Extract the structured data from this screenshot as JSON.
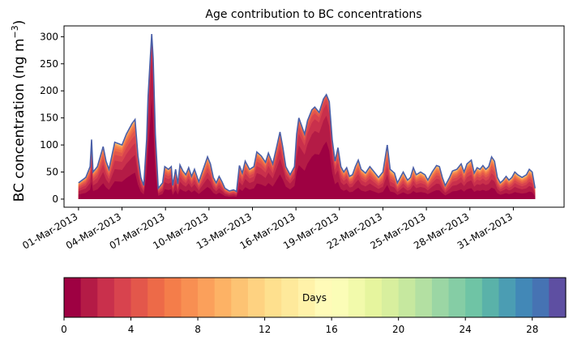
{
  "chart_data": {
    "type": "area",
    "title": "Age contribution to BC concentrations",
    "ylabel": "BC concentration (ng m",
    "ylabel_sup": "−3",
    "ylabel_close": ")",
    "xlabel": "",
    "ylim": [
      -15,
      320
    ],
    "xlim_days": [
      -1,
      33.5
    ],
    "data_start_day": 0,
    "data_end_day": 31.5,
    "yticks": [
      0,
      50,
      100,
      150,
      200,
      250,
      300
    ],
    "xticks": [
      {
        "day": 0,
        "label": "01-Mar-2013"
      },
      {
        "day": 3,
        "label": "04-Mar-2013"
      },
      {
        "day": 6,
        "label": "07-Mar-2013"
      },
      {
        "day": 9,
        "label": "10-Mar-2013"
      },
      {
        "day": 12,
        "label": "13-Mar-2013"
      },
      {
        "day": 15,
        "label": "16-Mar-2013"
      },
      {
        "day": 18,
        "label": "19-Mar-2013"
      },
      {
        "day": 21,
        "label": "22-Mar-2013"
      },
      {
        "day": 24,
        "label": "25-Mar-2013"
      },
      {
        "day": 27,
        "label": "28-Mar-2013"
      },
      {
        "day": 30,
        "label": "31-Mar-2013"
      }
    ],
    "total_series": [
      {
        "day": 0.0,
        "value": 30
      },
      {
        "day": 0.5,
        "value": 40
      },
      {
        "day": 0.8,
        "value": 60
      },
      {
        "day": 0.9,
        "value": 110
      },
      {
        "day": 1.0,
        "value": 50
      },
      {
        "day": 1.3,
        "value": 60
      },
      {
        "day": 1.7,
        "value": 97
      },
      {
        "day": 1.9,
        "value": 70
      },
      {
        "day": 2.1,
        "value": 55
      },
      {
        "day": 2.5,
        "value": 105
      },
      {
        "day": 3.0,
        "value": 100
      },
      {
        "day": 3.3,
        "value": 120
      },
      {
        "day": 3.7,
        "value": 140
      },
      {
        "day": 3.9,
        "value": 147
      },
      {
        "day": 4.1,
        "value": 80
      },
      {
        "day": 4.3,
        "value": 40
      },
      {
        "day": 4.5,
        "value": 25
      },
      {
        "day": 4.7,
        "value": 110
      },
      {
        "day": 4.8,
        "value": 190
      },
      {
        "day": 4.95,
        "value": 260
      },
      {
        "day": 5.05,
        "value": 305
      },
      {
        "day": 5.15,
        "value": 260
      },
      {
        "day": 5.3,
        "value": 120
      },
      {
        "day": 5.5,
        "value": 20
      },
      {
        "day": 5.8,
        "value": 30
      },
      {
        "day": 5.95,
        "value": 60
      },
      {
        "day": 6.2,
        "value": 55
      },
      {
        "day": 6.4,
        "value": 60
      },
      {
        "day": 6.5,
        "value": 25
      },
      {
        "day": 6.7,
        "value": 55
      },
      {
        "day": 6.85,
        "value": 28
      },
      {
        "day": 7.0,
        "value": 63
      },
      {
        "day": 7.2,
        "value": 52
      },
      {
        "day": 7.4,
        "value": 45
      },
      {
        "day": 7.6,
        "value": 58
      },
      {
        "day": 7.8,
        "value": 42
      },
      {
        "day": 8.0,
        "value": 55
      },
      {
        "day": 8.3,
        "value": 32
      },
      {
        "day": 8.6,
        "value": 55
      },
      {
        "day": 8.9,
        "value": 78
      },
      {
        "day": 9.1,
        "value": 65
      },
      {
        "day": 9.3,
        "value": 40
      },
      {
        "day": 9.5,
        "value": 30
      },
      {
        "day": 9.7,
        "value": 42
      },
      {
        "day": 9.9,
        "value": 32
      },
      {
        "day": 10.1,
        "value": 20
      },
      {
        "day": 10.4,
        "value": 15
      },
      {
        "day": 10.7,
        "value": 17
      },
      {
        "day": 10.9,
        "value": 14
      },
      {
        "day": 11.1,
        "value": 62
      },
      {
        "day": 11.3,
        "value": 48
      },
      {
        "day": 11.5,
        "value": 70
      },
      {
        "day": 11.8,
        "value": 55
      },
      {
        "day": 12.1,
        "value": 60
      },
      {
        "day": 12.3,
        "value": 87
      },
      {
        "day": 12.6,
        "value": 80
      },
      {
        "day": 12.9,
        "value": 68
      },
      {
        "day": 13.1,
        "value": 85
      },
      {
        "day": 13.4,
        "value": 65
      },
      {
        "day": 13.7,
        "value": 100
      },
      {
        "day": 13.9,
        "value": 124
      },
      {
        "day": 14.1,
        "value": 95
      },
      {
        "day": 14.3,
        "value": 60
      },
      {
        "day": 14.6,
        "value": 45
      },
      {
        "day": 14.9,
        "value": 60
      },
      {
        "day": 15.05,
        "value": 120
      },
      {
        "day": 15.2,
        "value": 150
      },
      {
        "day": 15.4,
        "value": 135
      },
      {
        "day": 15.6,
        "value": 120
      },
      {
        "day": 15.8,
        "value": 145
      },
      {
        "day": 16.1,
        "value": 165
      },
      {
        "day": 16.3,
        "value": 170
      },
      {
        "day": 16.6,
        "value": 160
      },
      {
        "day": 16.9,
        "value": 185
      },
      {
        "day": 17.1,
        "value": 193
      },
      {
        "day": 17.3,
        "value": 180
      },
      {
        "day": 17.5,
        "value": 110
      },
      {
        "day": 17.7,
        "value": 70
      },
      {
        "day": 17.9,
        "value": 95
      },
      {
        "day": 18.1,
        "value": 60
      },
      {
        "day": 18.3,
        "value": 50
      },
      {
        "day": 18.5,
        "value": 58
      },
      {
        "day": 18.7,
        "value": 42
      },
      {
        "day": 18.9,
        "value": 45
      },
      {
        "day": 19.1,
        "value": 60
      },
      {
        "day": 19.3,
        "value": 72
      },
      {
        "day": 19.5,
        "value": 55
      },
      {
        "day": 19.8,
        "value": 48
      },
      {
        "day": 20.1,
        "value": 60
      },
      {
        "day": 20.4,
        "value": 50
      },
      {
        "day": 20.7,
        "value": 40
      },
      {
        "day": 21.0,
        "value": 50
      },
      {
        "day": 21.3,
        "value": 100
      },
      {
        "day": 21.5,
        "value": 55
      },
      {
        "day": 21.8,
        "value": 48
      },
      {
        "day": 22.0,
        "value": 30
      },
      {
        "day": 22.4,
        "value": 50
      },
      {
        "day": 22.7,
        "value": 35
      },
      {
        "day": 22.9,
        "value": 40
      },
      {
        "day": 23.1,
        "value": 58
      },
      {
        "day": 23.3,
        "value": 45
      },
      {
        "day": 23.6,
        "value": 50
      },
      {
        "day": 23.9,
        "value": 45
      },
      {
        "day": 24.1,
        "value": 35
      },
      {
        "day": 24.4,
        "value": 50
      },
      {
        "day": 24.7,
        "value": 62
      },
      {
        "day": 24.9,
        "value": 60
      },
      {
        "day": 25.1,
        "value": 40
      },
      {
        "day": 25.3,
        "value": 25
      },
      {
        "day": 25.6,
        "value": 40
      },
      {
        "day": 25.8,
        "value": 52
      },
      {
        "day": 26.1,
        "value": 55
      },
      {
        "day": 26.4,
        "value": 65
      },
      {
        "day": 26.6,
        "value": 50
      },
      {
        "day": 26.8,
        "value": 65
      },
      {
        "day": 27.1,
        "value": 72
      },
      {
        "day": 27.3,
        "value": 48
      },
      {
        "day": 27.5,
        "value": 58
      },
      {
        "day": 27.7,
        "value": 55
      },
      {
        "day": 27.9,
        "value": 62
      },
      {
        "day": 28.1,
        "value": 55
      },
      {
        "day": 28.3,
        "value": 60
      },
      {
        "day": 28.5,
        "value": 78
      },
      {
        "day": 28.7,
        "value": 70
      },
      {
        "day": 28.9,
        "value": 40
      },
      {
        "day": 29.1,
        "value": 30
      },
      {
        "day": 29.3,
        "value": 35
      },
      {
        "day": 29.5,
        "value": 42
      },
      {
        "day": 29.7,
        "value": 35
      },
      {
        "day": 29.9,
        "value": 40
      },
      {
        "day": 30.1,
        "value": 50
      },
      {
        "day": 30.3,
        "value": 45
      },
      {
        "day": 30.6,
        "value": 40
      },
      {
        "day": 30.9,
        "value": 45
      },
      {
        "day": 31.1,
        "value": 55
      },
      {
        "day": 31.3,
        "value": 50
      },
      {
        "day": 31.5,
        "value": 20
      }
    ],
    "young_fraction_points": [
      {
        "day": 0,
        "value": 0.3
      },
      {
        "day": 4.5,
        "value": 0.4
      },
      {
        "day": 5.05,
        "value": 0.85
      },
      {
        "day": 5.5,
        "value": 0.35
      },
      {
        "day": 10,
        "value": 0.3
      },
      {
        "day": 14,
        "value": 0.45
      },
      {
        "day": 15.5,
        "value": 0.55
      },
      {
        "day": 17.1,
        "value": 0.75
      },
      {
        "day": 18,
        "value": 0.35
      },
      {
        "day": 22,
        "value": 0.25
      },
      {
        "day": 27,
        "value": 0.3
      },
      {
        "day": 31.5,
        "value": 0.25
      }
    ],
    "age_bands": 30,
    "colorbar": {
      "label": "Days",
      "range": [
        0,
        30
      ],
      "ticks": [
        0,
        4,
        8,
        12,
        16,
        20,
        24,
        28
      ],
      "colors": [
        "#9e0142",
        "#b41b46",
        "#c9304c",
        "#d8434e",
        "#e3574b",
        "#ed6a48",
        "#f47d4a",
        "#f88f52",
        "#fba05b",
        "#fdb265",
        "#fdc373",
        "#fed281",
        "#fee08e",
        "#fee99b",
        "#fff2a9",
        "#fffbb8",
        "#fbfdb7",
        "#f2faab",
        "#e6f59e",
        "#d8ef9e",
        "#c6e89f",
        "#b3e0a2",
        "#9bd6a4",
        "#85cda5",
        "#6fc4a5",
        "#5ab2a9",
        "#4b9db3",
        "#4288b7",
        "#4673b3",
        "#5e4fa2"
      ]
    }
  }
}
